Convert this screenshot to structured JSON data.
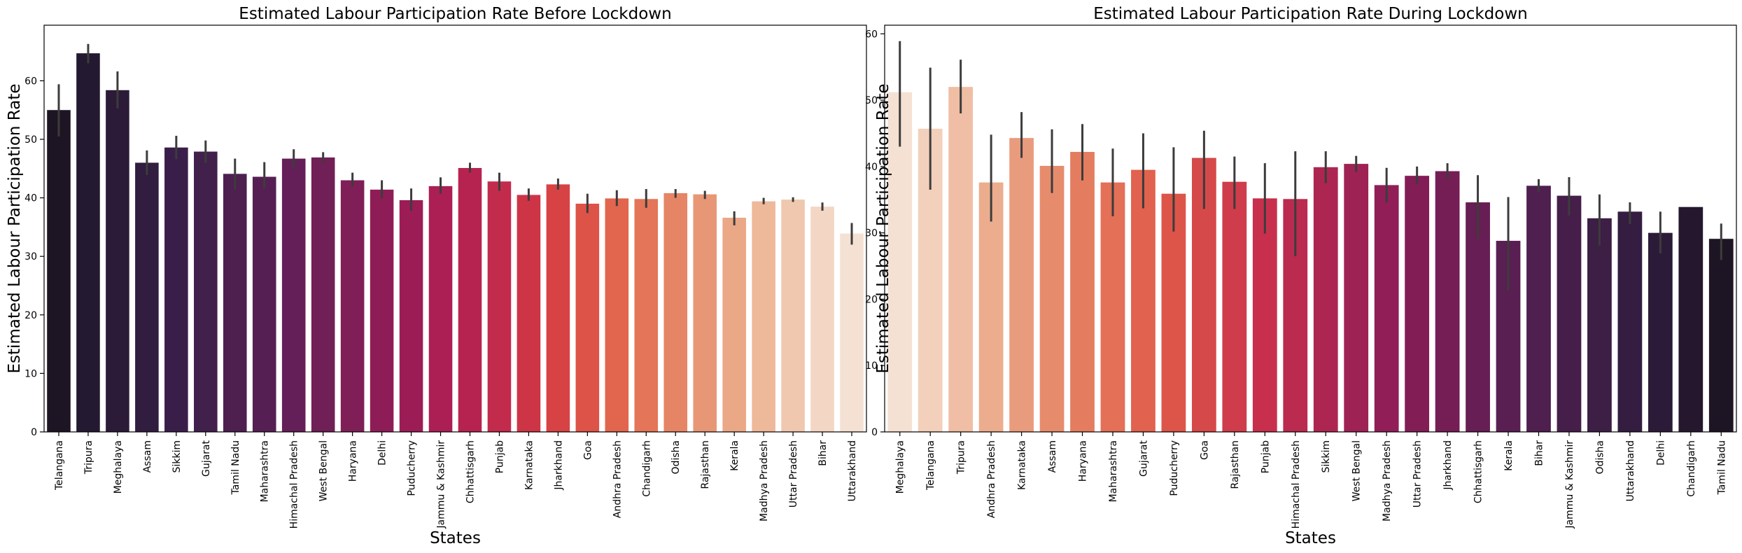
{
  "chart_data": [
    {
      "type": "bar",
      "title": "Estimated Labour Participation Rate Before Lockdown",
      "xlabel": "States",
      "ylabel": "Estimated Labour Participation Rate",
      "ylim": [
        0,
        69.5
      ],
      "yticks": [
        0,
        10,
        20,
        30,
        40,
        50,
        60
      ],
      "grid": false,
      "palette": "rocket (dark to light)",
      "categories": [
        "Telangana",
        "Tripura",
        "Meghalaya",
        "Assam",
        "Sikkim",
        "Gujarat",
        "Tamil Nadu",
        "Maharashtra",
        "Himachal Pradesh",
        "West Bengal",
        "Haryana",
        "Delhi",
        "Puducherry",
        "Jammu & Kashmir",
        "Chhattisgarh",
        "Punjab",
        "Karnataka",
        "Jharkhand",
        "Goa",
        "Andhra Pradesh",
        "Chandigarh",
        "Odisha",
        "Rajasthan",
        "Kerala",
        "Madhya Pradesh",
        "Uttar Pradesh",
        "Bihar",
        "Uttarakhand"
      ],
      "values": [
        55.0,
        64.7,
        58.4,
        46.0,
        48.6,
        47.9,
        44.1,
        43.6,
        46.7,
        46.9,
        43.0,
        41.4,
        39.6,
        42.0,
        45.1,
        42.8,
        40.5,
        42.3,
        39.0,
        39.9,
        39.8,
        40.8,
        40.6,
        36.6,
        39.4,
        39.7,
        38.5,
        33.9
      ],
      "error_low": [
        50.5,
        63.0,
        55.3,
        43.9,
        46.6,
        46.0,
        41.5,
        41.6,
        45.1,
        46.0,
        41.9,
        39.9,
        37.8,
        40.7,
        44.3,
        41.2,
        39.5,
        41.4,
        37.4,
        38.6,
        38.3,
        40.0,
        39.8,
        35.3,
        38.9,
        39.3,
        37.8,
        32.0
      ],
      "error_high": [
        59.4,
        66.3,
        61.6,
        48.1,
        50.6,
        49.8,
        46.7,
        46.1,
        48.3,
        47.8,
        44.3,
        43.0,
        41.6,
        43.5,
        46.0,
        44.3,
        41.6,
        43.3,
        40.7,
        41.3,
        41.5,
        41.5,
        41.2,
        37.7,
        40.0,
        40.1,
        39.2,
        35.7
      ],
      "colors": [
        "#1e1524",
        "#231931",
        "#2b1b38",
        "#311d3f",
        "#3a1e4a",
        "#42204c",
        "#4d2050",
        "#561f53",
        "#651f58",
        "#701f57",
        "#801e57",
        "#8e1d57",
        "#9c1c56",
        "#ab1f54",
        "#b72350",
        "#c32b4d",
        "#cd3547",
        "#d74345",
        "#de5347",
        "#e2654e",
        "#e47558",
        "#e58565",
        "#e89776",
        "#eaa887",
        "#eeb89a",
        "#f0c8af",
        "#f3d6c4",
        "#f5e1d3"
      ]
    },
    {
      "type": "bar",
      "title": "Estimated Labour Participation Rate During Lockdown",
      "xlabel": "States",
      "ylabel": "Estimated Labour Participation Rate",
      "ylim": [
        0,
        61.3
      ],
      "yticks": [
        0,
        10,
        20,
        30,
        40,
        50,
        60
      ],
      "grid": false,
      "palette": "rocket (light to dark)",
      "categories": [
        "Meghalaya",
        "Telangana",
        "Tripura",
        "Andhra Pradesh",
        "Karnataka",
        "Assam",
        "Haryana",
        "Maharashtra",
        "Gujarat",
        "Puducherry",
        "Goa",
        "Rajasthan",
        "Punjab",
        "Himachal Pradesh",
        "Sikkim",
        "West Bengal",
        "Madhya Pradesh",
        "Uttar Pradesh",
        "Jharkhand",
        "Chhattisgarh",
        "Kerala",
        "Bihar",
        "Jammu & Kashmir",
        "Odisha",
        "Uttarakhand",
        "Delhi",
        "Chandigarh",
        "Tamil Nadu"
      ],
      "values": [
        51.2,
        45.7,
        52.0,
        37.6,
        44.3,
        40.1,
        42.2,
        37.6,
        39.5,
        35.9,
        41.3,
        37.7,
        35.2,
        35.1,
        39.9,
        40.4,
        37.2,
        38.6,
        39.3,
        34.6,
        28.8,
        37.1,
        35.6,
        32.2,
        33.2,
        30.0,
        33.9,
        29.1
      ],
      "error_low": [
        43.0,
        36.5,
        48.0,
        31.7,
        41.3,
        36.0,
        37.9,
        32.5,
        33.7,
        30.2,
        33.6,
        33.6,
        29.9,
        26.5,
        37.5,
        39.2,
        34.6,
        37.3,
        38.2,
        29.2,
        21.3,
        36.2,
        32.6,
        28.1,
        31.3,
        26.9,
        33.9,
        25.9
      ],
      "error_high": [
        58.9,
        54.9,
        56.1,
        44.8,
        48.2,
        45.6,
        46.4,
        42.7,
        45.0,
        42.9,
        45.4,
        41.5,
        40.5,
        42.3,
        42.3,
        41.6,
        39.8,
        40.0,
        40.5,
        38.7,
        35.4,
        38.1,
        38.4,
        35.8,
        34.6,
        33.2,
        33.9,
        31.4
      ]
    }
  ]
}
